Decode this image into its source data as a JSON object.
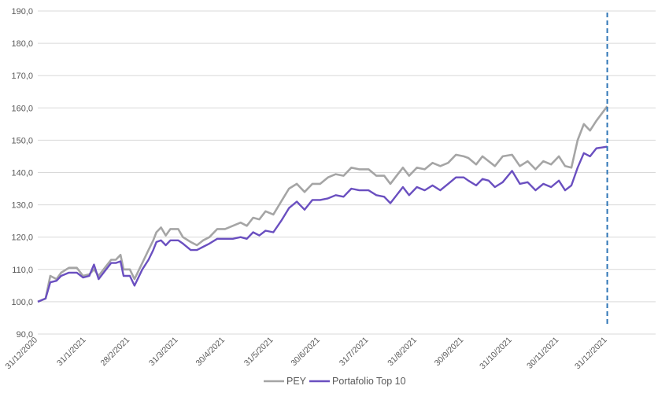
{
  "chart_data": {
    "type": "line",
    "ylim": [
      90,
      190
    ],
    "ytick_labels": [
      "90,0",
      "100,0",
      "110,0",
      "120,0",
      "130,0",
      "140,0",
      "150,0",
      "160,0",
      "170,0",
      "180,0",
      "190,0"
    ],
    "xtick_labels": [
      "31/12/2020",
      "31/1/2021",
      "28/2/2021",
      "31/3/2021",
      "30/4/2021",
      "31/5/2021",
      "30/6/2021",
      "31/7/2021",
      "31/8/2021",
      "30/9/2021",
      "31/10/2021",
      "30/11/2021",
      "31/12/2021"
    ],
    "x_end": "31/1/2022",
    "grid": "horizontal",
    "legend_position": "bottom",
    "vertical_marker": "31/12/2021",
    "vertical_marker_color": "#2E75B6",
    "series": [
      {
        "name": "PEY",
        "color": "#A5A5A5",
        "points": [
          [
            "31/12/2020",
            100.0
          ],
          [
            "5/1/2021",
            101.0
          ],
          [
            "8/1/2021",
            108.0
          ],
          [
            "12/1/2021",
            107.0
          ],
          [
            "15/1/2021",
            109.0
          ],
          [
            "20/1/2021",
            110.5
          ],
          [
            "25/1/2021",
            110.5
          ],
          [
            "29/1/2021",
            108.0
          ],
          [
            "2/2/2021",
            108.5
          ],
          [
            "5/2/2021",
            110.0
          ],
          [
            "8/2/2021",
            108.0
          ],
          [
            "12/2/2021",
            110.5
          ],
          [
            "16/2/2021",
            113.0
          ],
          [
            "19/2/2021",
            113.0
          ],
          [
            "22/2/2021",
            114.5
          ],
          [
            "24/2/2021",
            110.0
          ],
          [
            "28/2/2021",
            110.0
          ],
          [
            "3/3/2021",
            107.0
          ],
          [
            "8/3/2021",
            112.0
          ],
          [
            "12/3/2021",
            116.0
          ],
          [
            "15/3/2021",
            119.0
          ],
          [
            "17/3/2021",
            121.5
          ],
          [
            "20/3/2021",
            123.0
          ],
          [
            "23/3/2021",
            120.5
          ],
          [
            "26/3/2021",
            122.5
          ],
          [
            "31/3/2021",
            122.5
          ],
          [
            "3/4/2021",
            120.0
          ],
          [
            "8/4/2021",
            118.5
          ],
          [
            "12/4/2021",
            117.5
          ],
          [
            "16/4/2021",
            119.0
          ],
          [
            "20/4/2021",
            120.0
          ],
          [
            "25/4/2021",
            122.5
          ],
          [
            "30/4/2021",
            122.5
          ],
          [
            "5/5/2021",
            123.5
          ],
          [
            "10/5/2021",
            124.5
          ],
          [
            "14/5/2021",
            123.5
          ],
          [
            "18/5/2021",
            126.0
          ],
          [
            "22/5/2021",
            125.5
          ],
          [
            "26/5/2021",
            128.0
          ],
          [
            "31/5/2021",
            127.0
          ],
          [
            "5/6/2021",
            131.0
          ],
          [
            "10/6/2021",
            135.0
          ],
          [
            "15/6/2021",
            136.5
          ],
          [
            "20/6/2021",
            134.0
          ],
          [
            "25/6/2021",
            136.5
          ],
          [
            "30/6/2021",
            136.5
          ],
          [
            "5/7/2021",
            138.5
          ],
          [
            "10/7/2021",
            139.5
          ],
          [
            "15/7/2021",
            139.0
          ],
          [
            "20/7/2021",
            141.5
          ],
          [
            "25/7/2021",
            141.0
          ],
          [
            "31/7/2021",
            141.0
          ],
          [
            "5/8/2021",
            139.0
          ],
          [
            "10/8/2021",
            139.0
          ],
          [
            "14/8/2021",
            136.5
          ],
          [
            "18/8/2021",
            139.0
          ],
          [
            "22/8/2021",
            141.5
          ],
          [
            "26/8/2021",
            139.0
          ],
          [
            "31/8/2021",
            141.5
          ],
          [
            "5/9/2021",
            141.0
          ],
          [
            "10/9/2021",
            143.0
          ],
          [
            "15/9/2021",
            142.0
          ],
          [
            "20/9/2021",
            143.0
          ],
          [
            "25/9/2021",
            145.5
          ],
          [
            "30/9/2021",
            145.0
          ],
          [
            "3/10/2021",
            144.5
          ],
          [
            "8/10/2021",
            142.5
          ],
          [
            "12/10/2021",
            145.0
          ],
          [
            "16/10/2021",
            143.5
          ],
          [
            "20/10/2021",
            142.0
          ],
          [
            "25/10/2021",
            145.0
          ],
          [
            "31/10/2021",
            145.5
          ],
          [
            "5/11/2021",
            142.0
          ],
          [
            "10/11/2021",
            143.5
          ],
          [
            "15/11/2021",
            141.0
          ],
          [
            "20/11/2021",
            143.5
          ],
          [
            "25/11/2021",
            142.5
          ],
          [
            "30/11/2021",
            145.0
          ],
          [
            "4/12/2021",
            142.0
          ],
          [
            "8/12/2021",
            141.5
          ],
          [
            "12/12/2021",
            150.0
          ],
          [
            "16/12/2021",
            155.0
          ],
          [
            "20/12/2021",
            153.0
          ],
          [
            "24/12/2021",
            156.0
          ],
          [
            "31/12/2021",
            160.5
          ]
        ]
      },
      {
        "name": "Portafolio Top 10",
        "color": "#6A4FC0",
        "points": [
          [
            "31/12/2020",
            100.0
          ],
          [
            "5/1/2021",
            101.0
          ],
          [
            "8/1/2021",
            106.0
          ],
          [
            "12/1/2021",
            106.5
          ],
          [
            "15/1/2021",
            108.0
          ],
          [
            "20/1/2021",
            109.0
          ],
          [
            "25/1/2021",
            109.0
          ],
          [
            "29/1/2021",
            107.5
          ],
          [
            "2/2/2021",
            108.0
          ],
          [
            "5/2/2021",
            111.5
          ],
          [
            "8/2/2021",
            107.0
          ],
          [
            "12/2/2021",
            109.5
          ],
          [
            "16/2/2021",
            112.0
          ],
          [
            "19/2/2021",
            112.0
          ],
          [
            "22/2/2021",
            112.5
          ],
          [
            "24/2/2021",
            108.0
          ],
          [
            "28/2/2021",
            108.0
          ],
          [
            "3/3/2021",
            105.0
          ],
          [
            "8/3/2021",
            110.0
          ],
          [
            "12/3/2021",
            113.0
          ],
          [
            "15/3/2021",
            116.0
          ],
          [
            "17/3/2021",
            118.5
          ],
          [
            "20/3/2021",
            119.0
          ],
          [
            "23/3/2021",
            117.5
          ],
          [
            "26/3/2021",
            119.0
          ],
          [
            "31/3/2021",
            119.0
          ],
          [
            "3/4/2021",
            118.0
          ],
          [
            "8/4/2021",
            116.0
          ],
          [
            "12/4/2021",
            116.0
          ],
          [
            "16/4/2021",
            117.0
          ],
          [
            "20/4/2021",
            118.0
          ],
          [
            "25/4/2021",
            119.5
          ],
          [
            "30/4/2021",
            119.5
          ],
          [
            "5/5/2021",
            119.5
          ],
          [
            "10/5/2021",
            120.0
          ],
          [
            "14/5/2021",
            119.5
          ],
          [
            "18/5/2021",
            121.5
          ],
          [
            "22/5/2021",
            120.5
          ],
          [
            "26/5/2021",
            122.0
          ],
          [
            "31/5/2021",
            121.5
          ],
          [
            "5/6/2021",
            125.0
          ],
          [
            "10/6/2021",
            129.0
          ],
          [
            "15/6/2021",
            131.0
          ],
          [
            "20/6/2021",
            128.5
          ],
          [
            "25/6/2021",
            131.5
          ],
          [
            "30/6/2021",
            131.5
          ],
          [
            "5/7/2021",
            132.0
          ],
          [
            "10/7/2021",
            133.0
          ],
          [
            "15/7/2021",
            132.5
          ],
          [
            "20/7/2021",
            135.0
          ],
          [
            "25/7/2021",
            134.5
          ],
          [
            "31/7/2021",
            134.5
          ],
          [
            "5/8/2021",
            133.0
          ],
          [
            "10/8/2021",
            132.5
          ],
          [
            "14/8/2021",
            130.5
          ],
          [
            "18/8/2021",
            133.0
          ],
          [
            "22/8/2021",
            135.5
          ],
          [
            "26/8/2021",
            133.0
          ],
          [
            "31/8/2021",
            135.5
          ],
          [
            "5/9/2021",
            134.5
          ],
          [
            "10/9/2021",
            136.0
          ],
          [
            "15/9/2021",
            134.5
          ],
          [
            "20/9/2021",
            136.5
          ],
          [
            "25/9/2021",
            138.5
          ],
          [
            "30/9/2021",
            138.5
          ],
          [
            "3/10/2021",
            137.5
          ],
          [
            "8/10/2021",
            136.0
          ],
          [
            "12/10/2021",
            138.0
          ],
          [
            "16/10/2021",
            137.5
          ],
          [
            "20/10/2021",
            135.5
          ],
          [
            "25/10/2021",
            137.0
          ],
          [
            "31/10/2021",
            140.5
          ],
          [
            "5/11/2021",
            136.5
          ],
          [
            "10/11/2021",
            137.0
          ],
          [
            "15/11/2021",
            134.5
          ],
          [
            "20/11/2021",
            136.5
          ],
          [
            "25/11/2021",
            135.5
          ],
          [
            "30/11/2021",
            137.5
          ],
          [
            "4/12/2021",
            134.5
          ],
          [
            "8/12/2021",
            136.0
          ],
          [
            "12/12/2021",
            141.5
          ],
          [
            "16/12/2021",
            146.0
          ],
          [
            "20/12/2021",
            145.0
          ],
          [
            "24/12/2021",
            147.5
          ],
          [
            "31/12/2021",
            148.0
          ]
        ]
      }
    ]
  }
}
